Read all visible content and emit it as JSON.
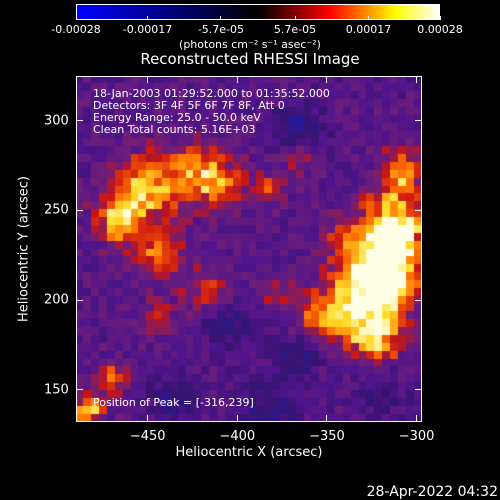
{
  "colorbar": {
    "tick_labels": [
      "-0.00028",
      "-0.00017",
      "-5.7e-05",
      "5.7e-05",
      "0.00017",
      "0.00028"
    ],
    "tick_values": [
      -0.00028,
      -0.00017,
      -5.7e-05,
      5.7e-05,
      0.00017,
      0.00028
    ],
    "range": [
      -0.00028,
      0.00028
    ],
    "units_label": "(photons cm⁻² s⁻¹ asec⁻²)",
    "colors": [
      "#0000ff",
      "#000000",
      "#ff0000",
      "#ffff00",
      "#ffffff"
    ]
  },
  "title": "Reconstructed RHESSI Image",
  "annotations": {
    "line1": "18-Jan-2003 01:29:52.000 to 01:35:52.000",
    "line2": "Detectors: 3F 4F 5F 6F 7F 8F, Att 0",
    "line3": "Energy Range: 25.0 - 50.0 keV",
    "line4": "Clean     Total counts: 5.16E+03",
    "peak": "Position of Peak = [-316,239]"
  },
  "x_axis": {
    "label": "Heliocentric X (arcsec)",
    "range": [
      -490,
      -297
    ],
    "ticks": [
      -450,
      -400,
      -350,
      -300
    ],
    "tick_labels": [
      "−450",
      "−400",
      "−350",
      "−300"
    ]
  },
  "y_axis": {
    "label": "Heliocentric Y (arcsec)",
    "range": [
      132,
      325
    ],
    "ticks": [
      150,
      200,
      250,
      300
    ],
    "tick_labels": [
      "150",
      "200",
      "250",
      "300"
    ]
  },
  "peak_position": [
    -316,
    239
  ],
  "timestamp": "28-Apr-2022 04:32"
}
